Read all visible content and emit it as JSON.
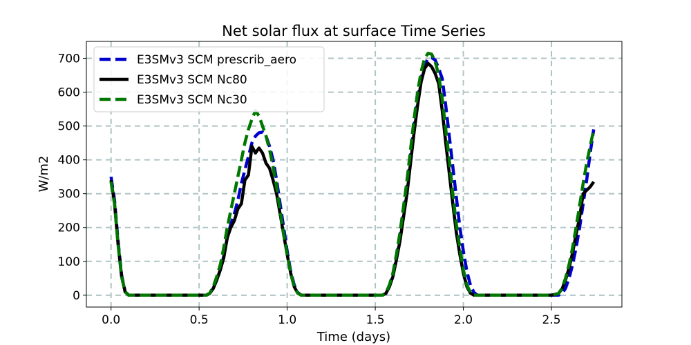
{
  "chart_data": {
    "type": "line",
    "title": "Net solar flux at surface Time Series",
    "xlabel": "Time (days)",
    "ylabel": "W/m2",
    "xlim": [
      -0.14,
      2.9
    ],
    "ylim": [
      -35,
      750
    ],
    "xticks": [
      0.0,
      0.5,
      1.0,
      1.5,
      2.0,
      2.5
    ],
    "xtick_labels": [
      "0.0",
      "0.5",
      "1.0",
      "1.5",
      "2.0",
      "2.5"
    ],
    "yticks": [
      0,
      100,
      200,
      300,
      400,
      500,
      600,
      700
    ],
    "ytick_labels": [
      "0",
      "100",
      "200",
      "300",
      "400",
      "500",
      "600",
      "700"
    ],
    "grid": true,
    "legend_position": "top-left",
    "series": [
      {
        "name": "E3SMv3 SCM prescrib_aero",
        "color": "#0000cc",
        "dash": "dashed",
        "x": [
          0,
          0.02,
          0.04,
          0.06,
          0.08,
          0.1,
          0.12,
          0.2,
          0.3,
          0.4,
          0.5,
          0.54,
          0.56,
          0.58,
          0.6,
          0.62,
          0.64,
          0.66,
          0.68,
          0.7,
          0.72,
          0.74,
          0.76,
          0.78,
          0.8,
          0.82,
          0.84,
          0.86,
          0.88,
          0.9,
          0.92,
          0.94,
          0.96,
          0.98,
          1.0,
          1.02,
          1.04,
          1.06,
          1.08,
          1.1,
          1.2,
          1.3,
          1.4,
          1.5,
          1.54,
          1.56,
          1.58,
          1.6,
          1.62,
          1.64,
          1.66,
          1.68,
          1.7,
          1.72,
          1.74,
          1.76,
          1.78,
          1.8,
          1.82,
          1.84,
          1.86,
          1.88,
          1.9,
          1.92,
          1.94,
          1.96,
          1.98,
          2.0,
          2.02,
          2.04,
          2.06,
          2.08,
          2.1,
          2.2,
          2.3,
          2.4,
          2.5,
          2.54,
          2.56,
          2.58,
          2.6,
          2.62,
          2.64,
          2.66,
          2.68,
          2.7,
          2.72,
          2.74
        ],
        "values": [
          350,
          280,
          160,
          60,
          10,
          0,
          0,
          0,
          0,
          0,
          0,
          0,
          5,
          20,
          45,
          75,
          115,
          170,
          210,
          240,
          280,
          330,
          370,
          410,
          450,
          470,
          480,
          482,
          470,
          440,
          400,
          340,
          270,
          200,
          130,
          70,
          30,
          8,
          0,
          0,
          0,
          0,
          0,
          0,
          0,
          5,
          25,
          60,
          110,
          170,
          240,
          320,
          410,
          500,
          580,
          640,
          680,
          700,
          702,
          695,
          670,
          640,
          560,
          470,
          380,
          290,
          200,
          130,
          70,
          30,
          8,
          0,
          0,
          0,
          0,
          0,
          0,
          0,
          5,
          20,
          50,
          90,
          140,
          200,
          270,
          340,
          420,
          490
        ]
      },
      {
        "name": "E3SMv3 SCM Nc80",
        "color": "#000000",
        "dash": "solid",
        "x": [
          0,
          0.02,
          0.04,
          0.06,
          0.08,
          0.1,
          0.12,
          0.2,
          0.3,
          0.4,
          0.5,
          0.54,
          0.56,
          0.58,
          0.6,
          0.62,
          0.64,
          0.66,
          0.68,
          0.7,
          0.72,
          0.74,
          0.76,
          0.78,
          0.8,
          0.82,
          0.84,
          0.86,
          0.88,
          0.9,
          0.92,
          0.94,
          0.96,
          0.98,
          1.0,
          1.02,
          1.04,
          1.06,
          1.08,
          1.1,
          1.2,
          1.3,
          1.4,
          1.5,
          1.54,
          1.56,
          1.58,
          1.6,
          1.62,
          1.64,
          1.66,
          1.68,
          1.7,
          1.72,
          1.74,
          1.76,
          1.78,
          1.8,
          1.82,
          1.84,
          1.86,
          1.88,
          1.9,
          1.92,
          1.94,
          1.96,
          1.98,
          2.0,
          2.02,
          2.04,
          2.06,
          2.08,
          2.1,
          2.2,
          2.3,
          2.4,
          2.5,
          2.54,
          2.56,
          2.58,
          2.6,
          2.62,
          2.64,
          2.66,
          2.68,
          2.7,
          2.72,
          2.74
        ],
        "values": [
          340,
          270,
          150,
          55,
          10,
          0,
          0,
          0,
          0,
          0,
          0,
          0,
          5,
          20,
          45,
          75,
          110,
          170,
          200,
          220,
          255,
          270,
          340,
          355,
          440,
          420,
          435,
          420,
          390,
          375,
          340,
          300,
          240,
          180,
          120,
          65,
          25,
          6,
          0,
          0,
          0,
          0,
          0,
          0,
          0,
          5,
          25,
          55,
          105,
          160,
          230,
          300,
          390,
          480,
          560,
          630,
          670,
          685,
          675,
          655,
          625,
          545,
          450,
          360,
          270,
          185,
          120,
          65,
          25,
          6,
          0,
          0,
          0,
          0,
          0,
          0,
          0,
          5,
          18,
          45,
          80,
          125,
          180,
          230,
          300,
          310,
          320,
          335
        ]
      },
      {
        "name": "E3SMv3 SCM Nc30",
        "color": "#007700",
        "dash": "dashed",
        "x": [
          0,
          0.02,
          0.04,
          0.06,
          0.08,
          0.1,
          0.12,
          0.2,
          0.3,
          0.4,
          0.5,
          0.54,
          0.56,
          0.58,
          0.6,
          0.62,
          0.64,
          0.66,
          0.68,
          0.7,
          0.72,
          0.74,
          0.76,
          0.78,
          0.8,
          0.82,
          0.84,
          0.86,
          0.88,
          0.9,
          0.92,
          0.94,
          0.96,
          0.98,
          1.0,
          1.02,
          1.04,
          1.06,
          1.08,
          1.1,
          1.2,
          1.3,
          1.4,
          1.5,
          1.54,
          1.56,
          1.58,
          1.6,
          1.62,
          1.64,
          1.66,
          1.68,
          1.7,
          1.72,
          1.74,
          1.76,
          1.78,
          1.8,
          1.82,
          1.84,
          1.86,
          1.88,
          1.9,
          1.92,
          1.94,
          1.96,
          1.98,
          2.0,
          2.02,
          2.04,
          2.06,
          2.08,
          2.1,
          2.2,
          2.3,
          2.4,
          2.5,
          2.54,
          2.56,
          2.58,
          2.6,
          2.62,
          2.64,
          2.66,
          2.68,
          2.7,
          2.72,
          2.74
        ],
        "values": [
          335,
          270,
          150,
          55,
          10,
          0,
          0,
          0,
          0,
          0,
          0,
          0,
          6,
          25,
          55,
          90,
          140,
          200,
          250,
          300,
          350,
          400,
          450,
          490,
          520,
          545,
          530,
          500,
          470,
          430,
          380,
          320,
          250,
          180,
          120,
          65,
          25,
          6,
          0,
          0,
          0,
          0,
          0,
          0,
          0,
          6,
          30,
          65,
          120,
          185,
          260,
          340,
          430,
          520,
          600,
          660,
          700,
          715,
          712,
          690,
          650,
          580,
          490,
          400,
          300,
          210,
          140,
          75,
          30,
          8,
          0,
          0,
          0,
          0,
          0,
          0,
          0,
          5,
          20,
          50,
          90,
          140,
          200,
          265,
          330,
          390,
          440,
          490
        ]
      }
    ]
  }
}
